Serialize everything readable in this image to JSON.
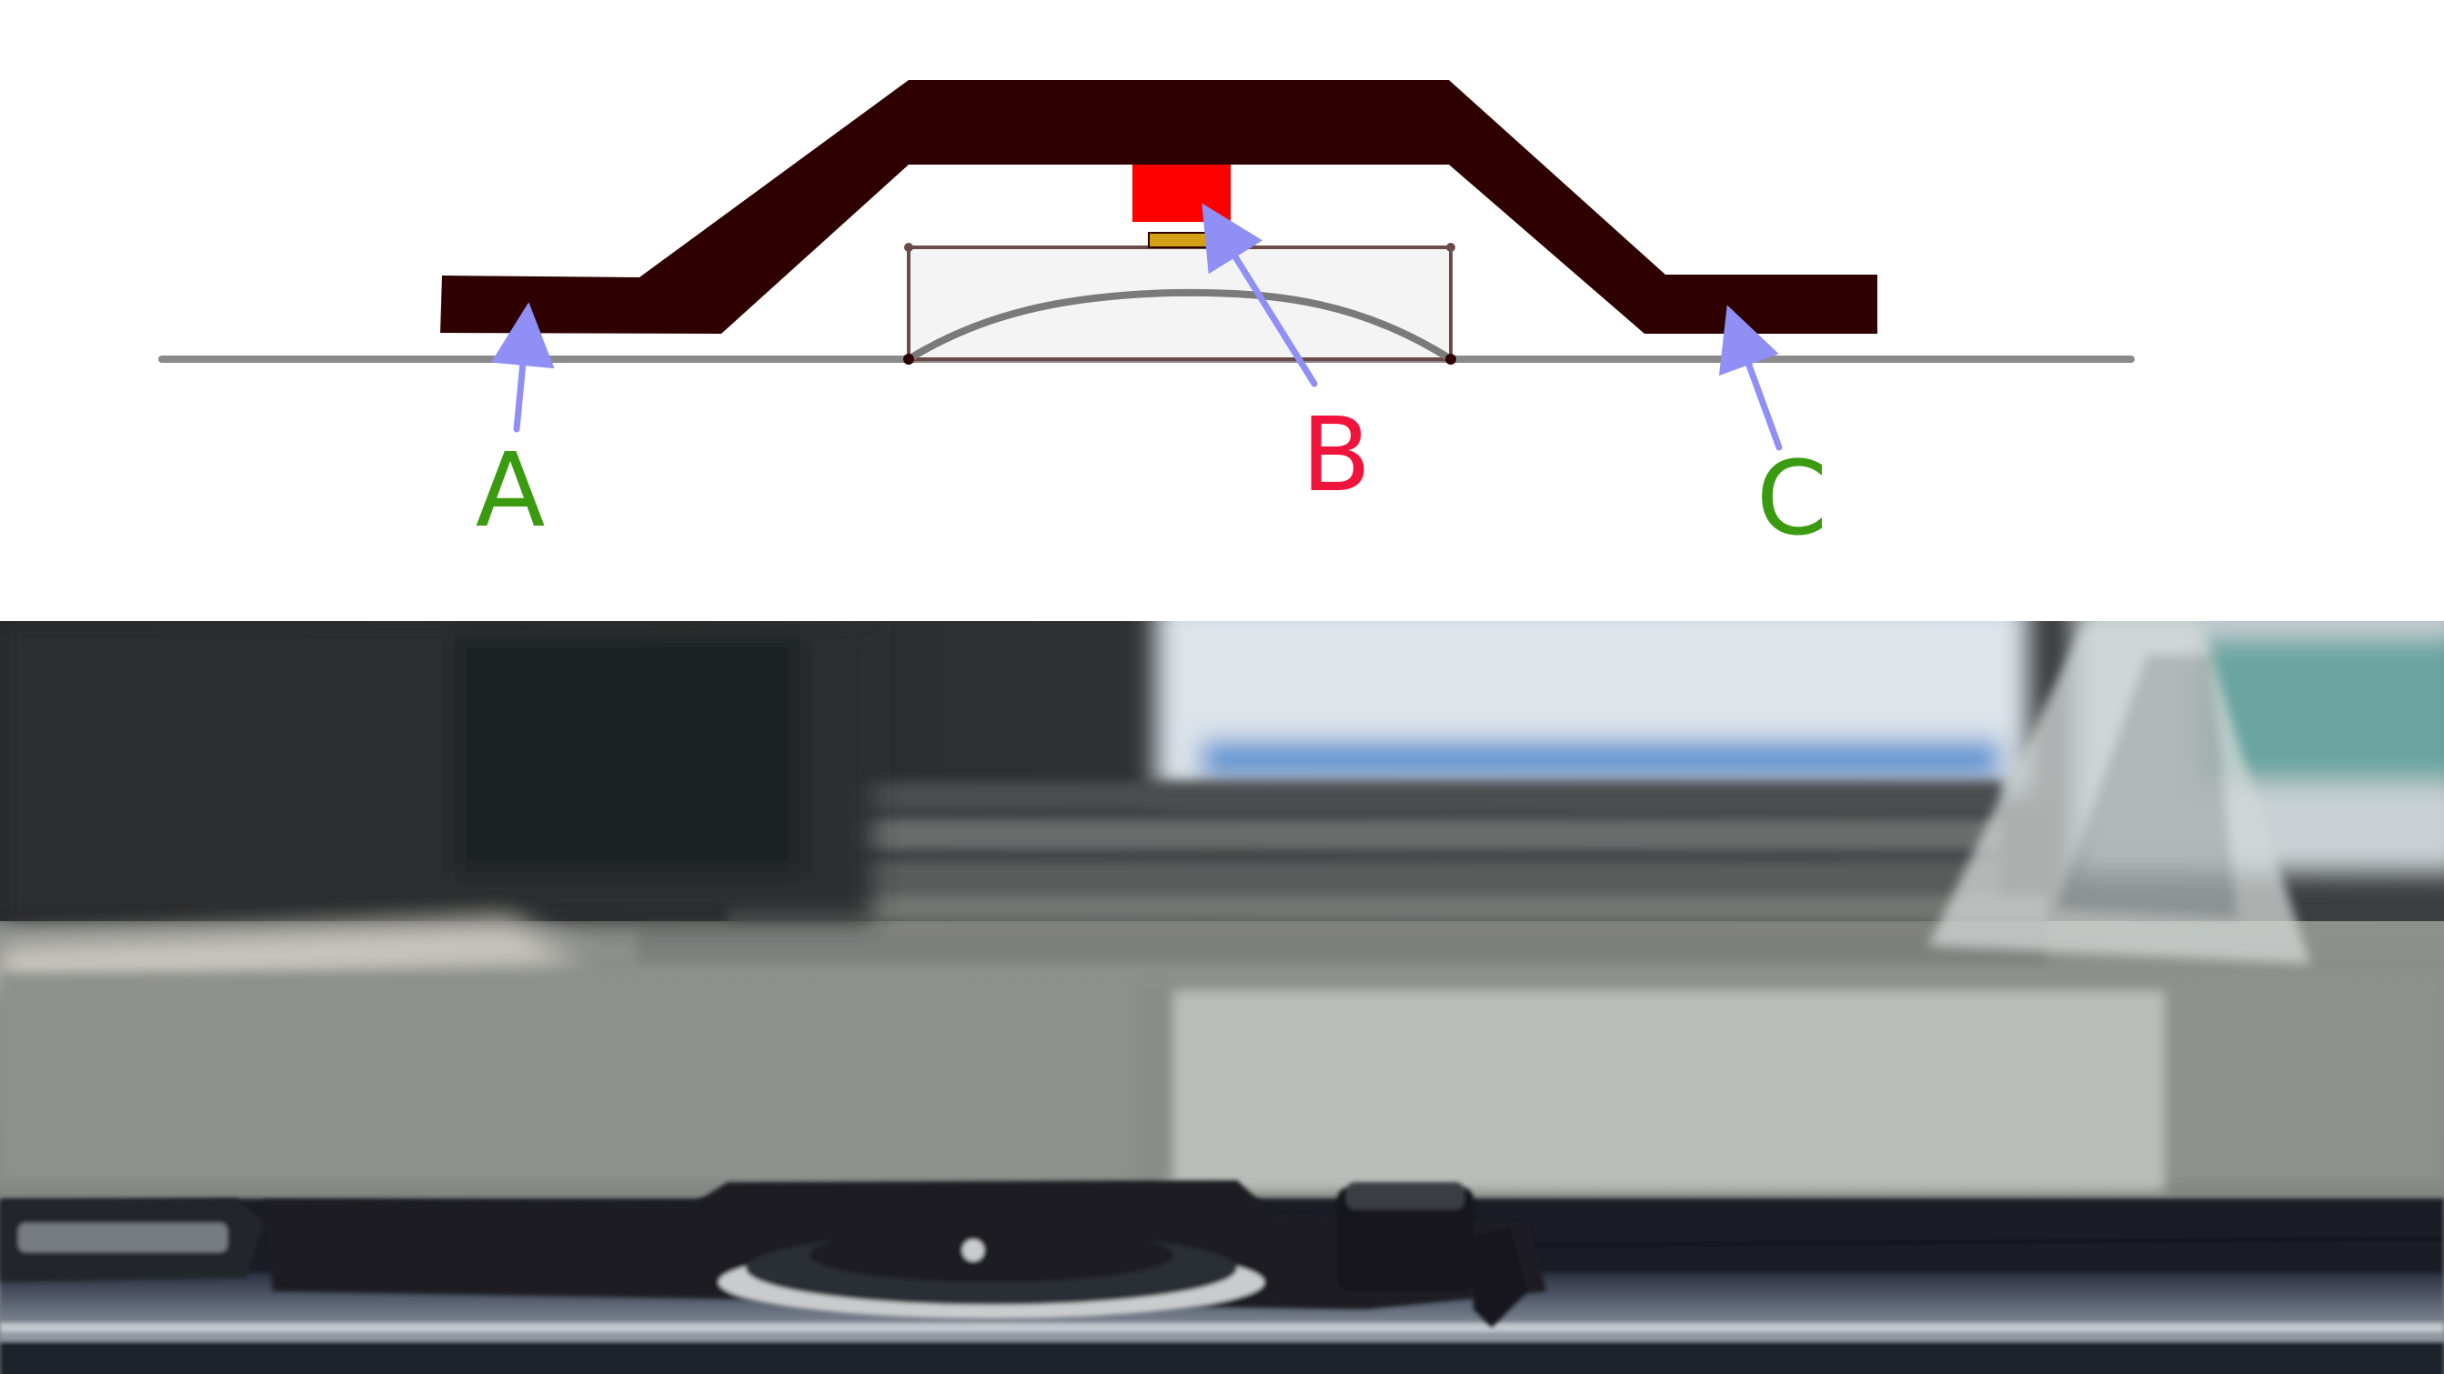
{
  "diagram": {
    "labels": {
      "a": "A",
      "b": "B",
      "c": "C"
    },
    "colors": {
      "background": "#ffffff",
      "cover_bracket": "#2e0000",
      "base_line": "#8a8a8a",
      "component_housing_fill": "#f4f4f4",
      "component_housing_stroke": "#6b4a4a",
      "dome_curve": "#7a7a7a",
      "red_block": "#ff0000",
      "gold_pad": "#d4a017",
      "arrow": "#8f8ff5",
      "label_a": "#3a9a10",
      "label_b": "#f0143c",
      "label_c": "#3a9a10"
    }
  },
  "photo": {
    "subject": "side-view-photo",
    "colors": {
      "dark_top": "#2a2c2e",
      "bright_window": "#dde4ea",
      "blue_strip": "#4f8fd0",
      "grey_surface": "#8e908c",
      "reflection": "#b9bcb8",
      "device_edge": "#1b1e26",
      "metal_rim": "#c9cbcc",
      "steel_band": "#5c6474"
    }
  }
}
